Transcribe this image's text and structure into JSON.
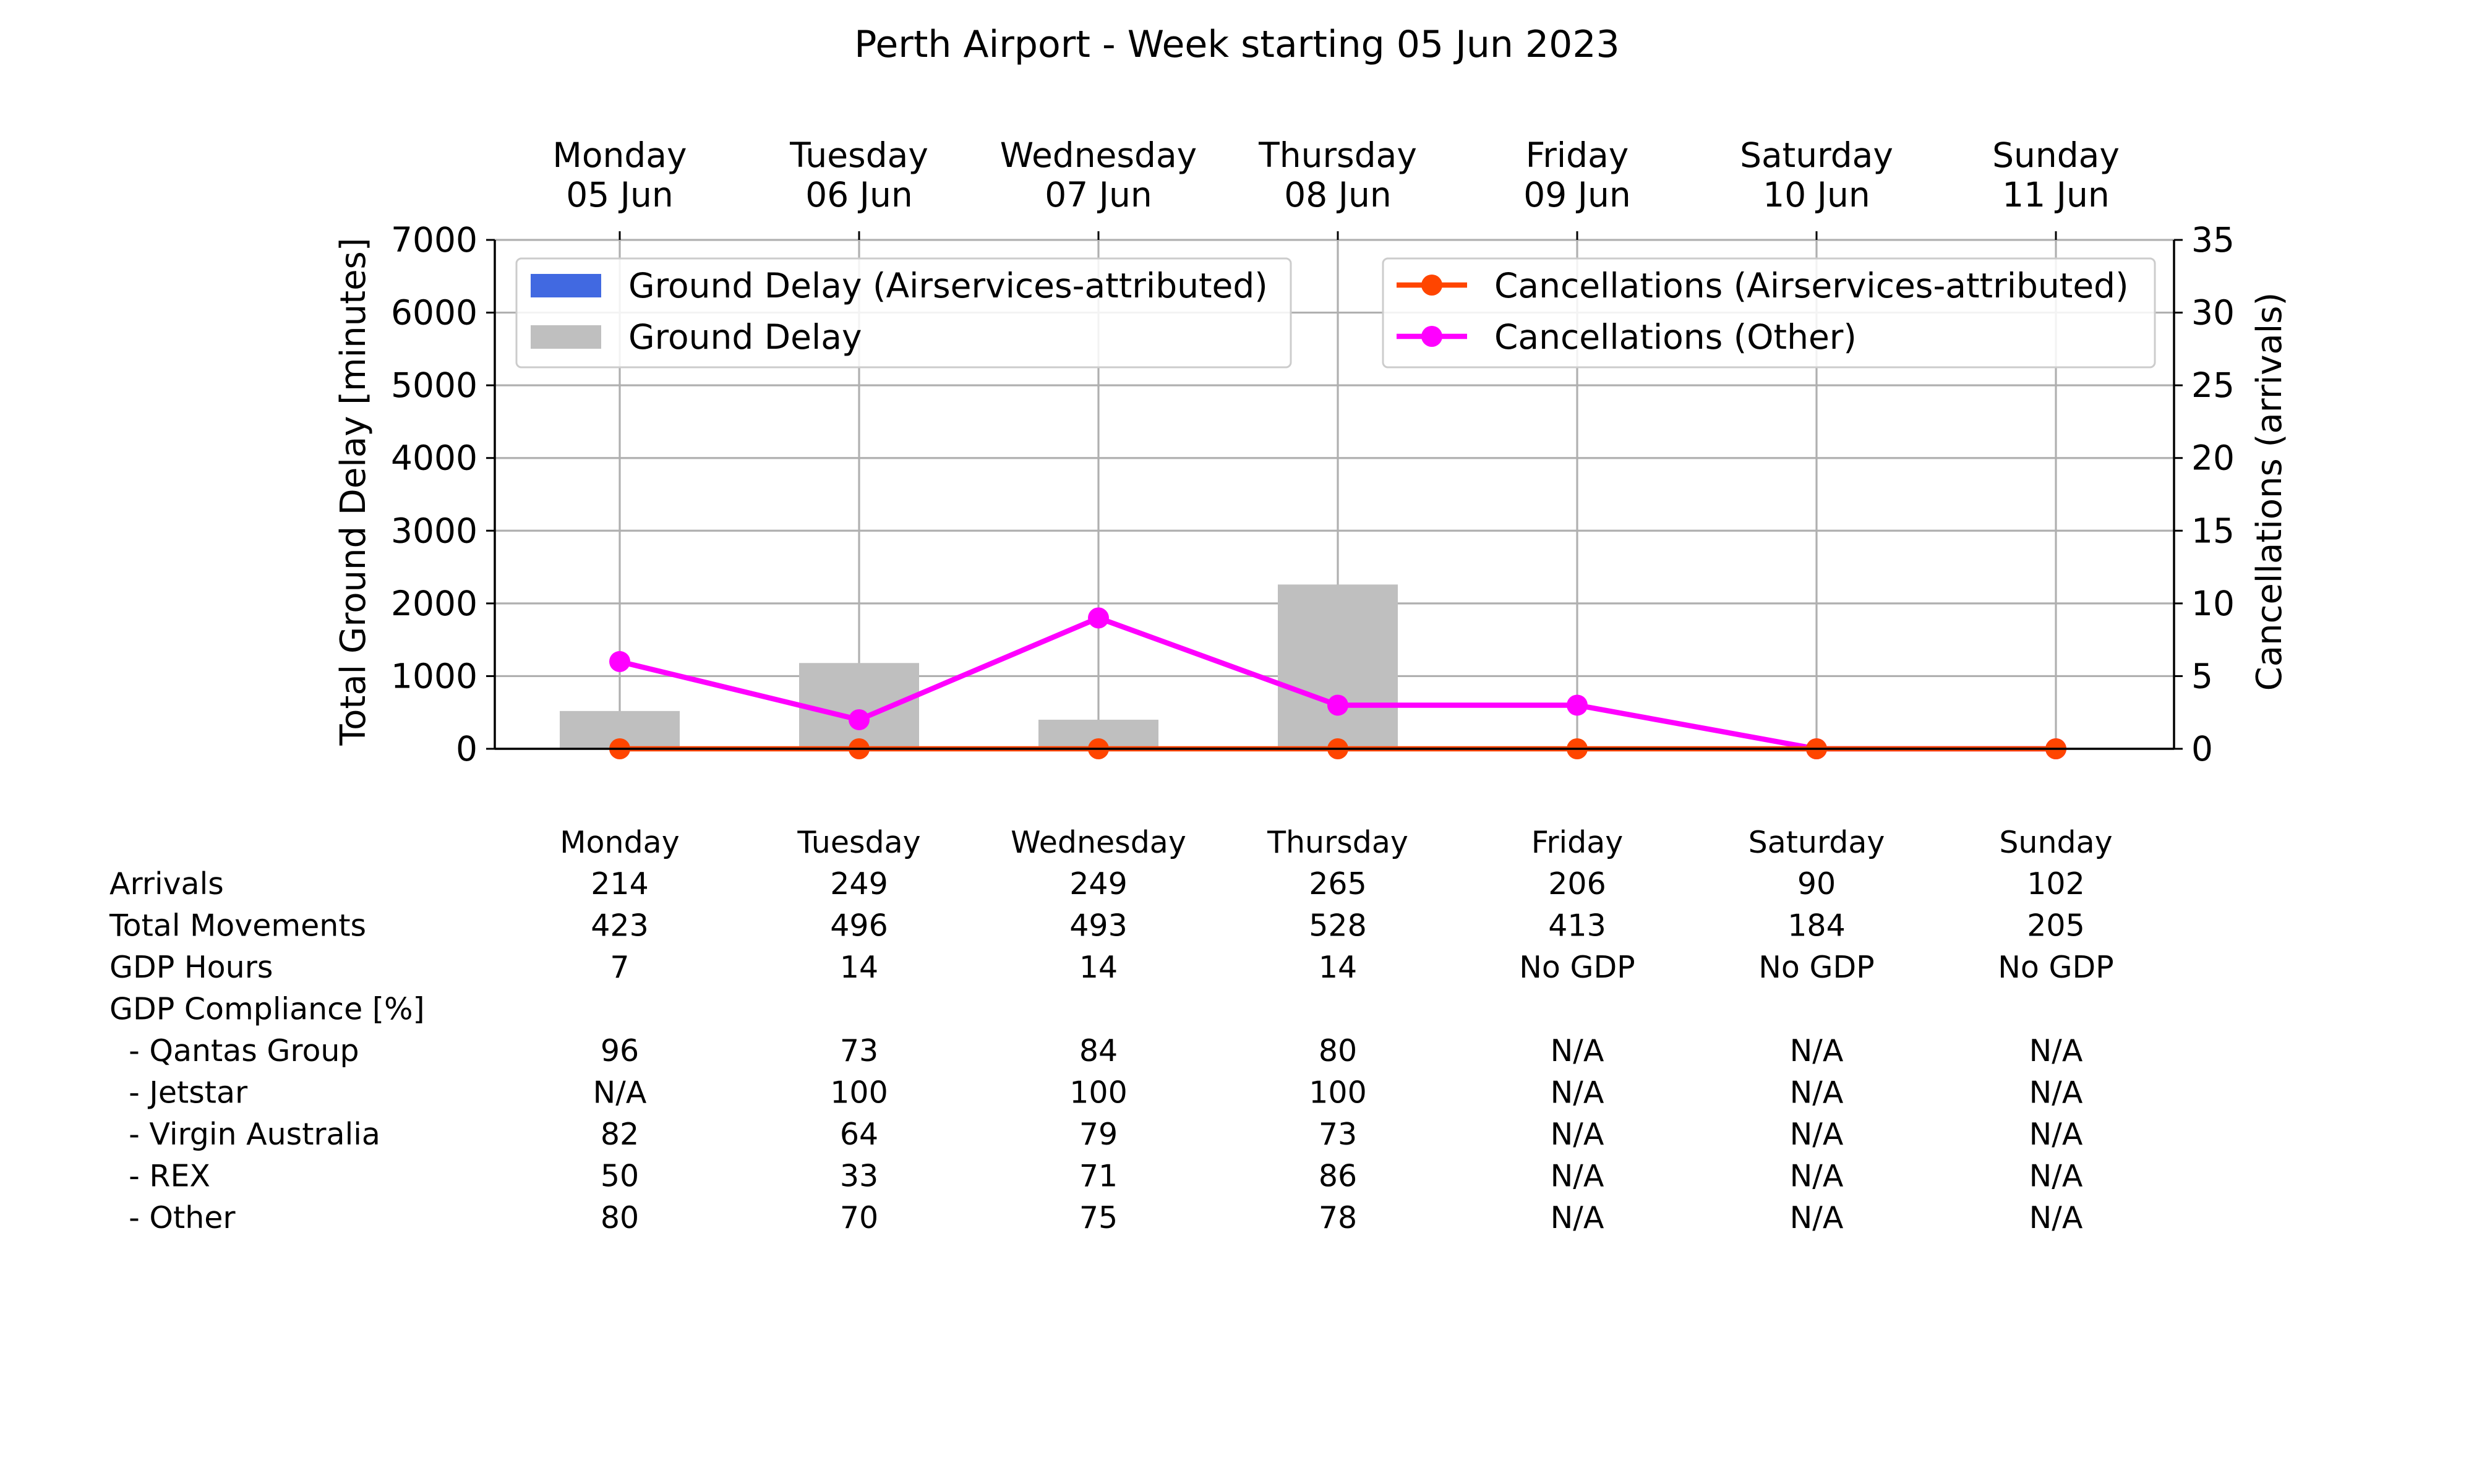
{
  "chart_data": {
    "type": "bar",
    "title": "Perth Airport - Week starting 05 Jun 2023",
    "categories": [
      {
        "day": "Monday",
        "date": "05 Jun"
      },
      {
        "day": "Tuesday",
        "date": "06 Jun"
      },
      {
        "day": "Wednesday",
        "date": "07 Jun"
      },
      {
        "day": "Thursday",
        "date": "08 Jun"
      },
      {
        "day": "Friday",
        "date": "09 Jun"
      },
      {
        "day": "Saturday",
        "date": "10 Jun"
      },
      {
        "day": "Sunday",
        "date": "11 Jun"
      }
    ],
    "ylabel_left": "Total Ground Delay [minutes]",
    "ylabel_right": "Cancellations (arrivals)",
    "ylim_left": [
      0,
      7000
    ],
    "ylim_right": [
      0,
      35
    ],
    "yticks_left": [
      0,
      1000,
      2000,
      3000,
      4000,
      5000,
      6000,
      7000
    ],
    "yticks_right": [
      0,
      5,
      10,
      15,
      20,
      25,
      30,
      35
    ],
    "grid": true,
    "bar_series": [
      {
        "name": "Ground Delay (Airservices-attributed)",
        "color": "#4169e1",
        "values": [
          0,
          0,
          0,
          0,
          0,
          0,
          0
        ]
      },
      {
        "name": "Ground Delay",
        "color": "#bfbfbf",
        "values": [
          520,
          1180,
          400,
          2260,
          0,
          0,
          0
        ]
      }
    ],
    "line_series": [
      {
        "name": "Cancellations (Airservices-attributed)",
        "color": "#ff4500",
        "values": [
          0,
          0,
          0,
          0,
          0,
          0,
          0
        ]
      },
      {
        "name": "Cancellations (Other)",
        "color": "#ff00ff",
        "values": [
          6,
          2,
          9,
          3,
          3,
          0,
          0
        ]
      }
    ],
    "legend_left_placement": "upper-left",
    "legend_right_placement": "upper-right"
  },
  "table": {
    "columns": [
      "Monday",
      "Tuesday",
      "Wednesday",
      "Thursday",
      "Friday",
      "Saturday",
      "Sunday"
    ],
    "rows": [
      {
        "label": "Arrivals",
        "values": [
          "214",
          "249",
          "249",
          "265",
          "206",
          "90",
          "102"
        ]
      },
      {
        "label": "Total Movements",
        "values": [
          "423",
          "496",
          "493",
          "528",
          "413",
          "184",
          "205"
        ]
      },
      {
        "label": "GDP Hours",
        "values": [
          "7",
          "14",
          "14",
          "14",
          "No GDP",
          "No GDP",
          "No GDP"
        ]
      },
      {
        "label": "GDP Compliance [%]",
        "values": [
          "",
          "",
          "",
          "",
          "",
          "",
          ""
        ]
      },
      {
        "label": "  - Qantas Group",
        "values": [
          "96",
          "73",
          "84",
          "80",
          "N/A",
          "N/A",
          "N/A"
        ]
      },
      {
        "label": "  - Jetstar",
        "values": [
          "N/A",
          "100",
          "100",
          "100",
          "N/A",
          "N/A",
          "N/A"
        ]
      },
      {
        "label": "  - Virgin Australia",
        "values": [
          "82",
          "64",
          "79",
          "73",
          "N/A",
          "N/A",
          "N/A"
        ]
      },
      {
        "label": "  - REX",
        "values": [
          "50",
          "33",
          "71",
          "86",
          "N/A",
          "N/A",
          "N/A"
        ]
      },
      {
        "label": "  - Other",
        "values": [
          "80",
          "70",
          "75",
          "78",
          "N/A",
          "N/A",
          "N/A"
        ]
      }
    ]
  }
}
